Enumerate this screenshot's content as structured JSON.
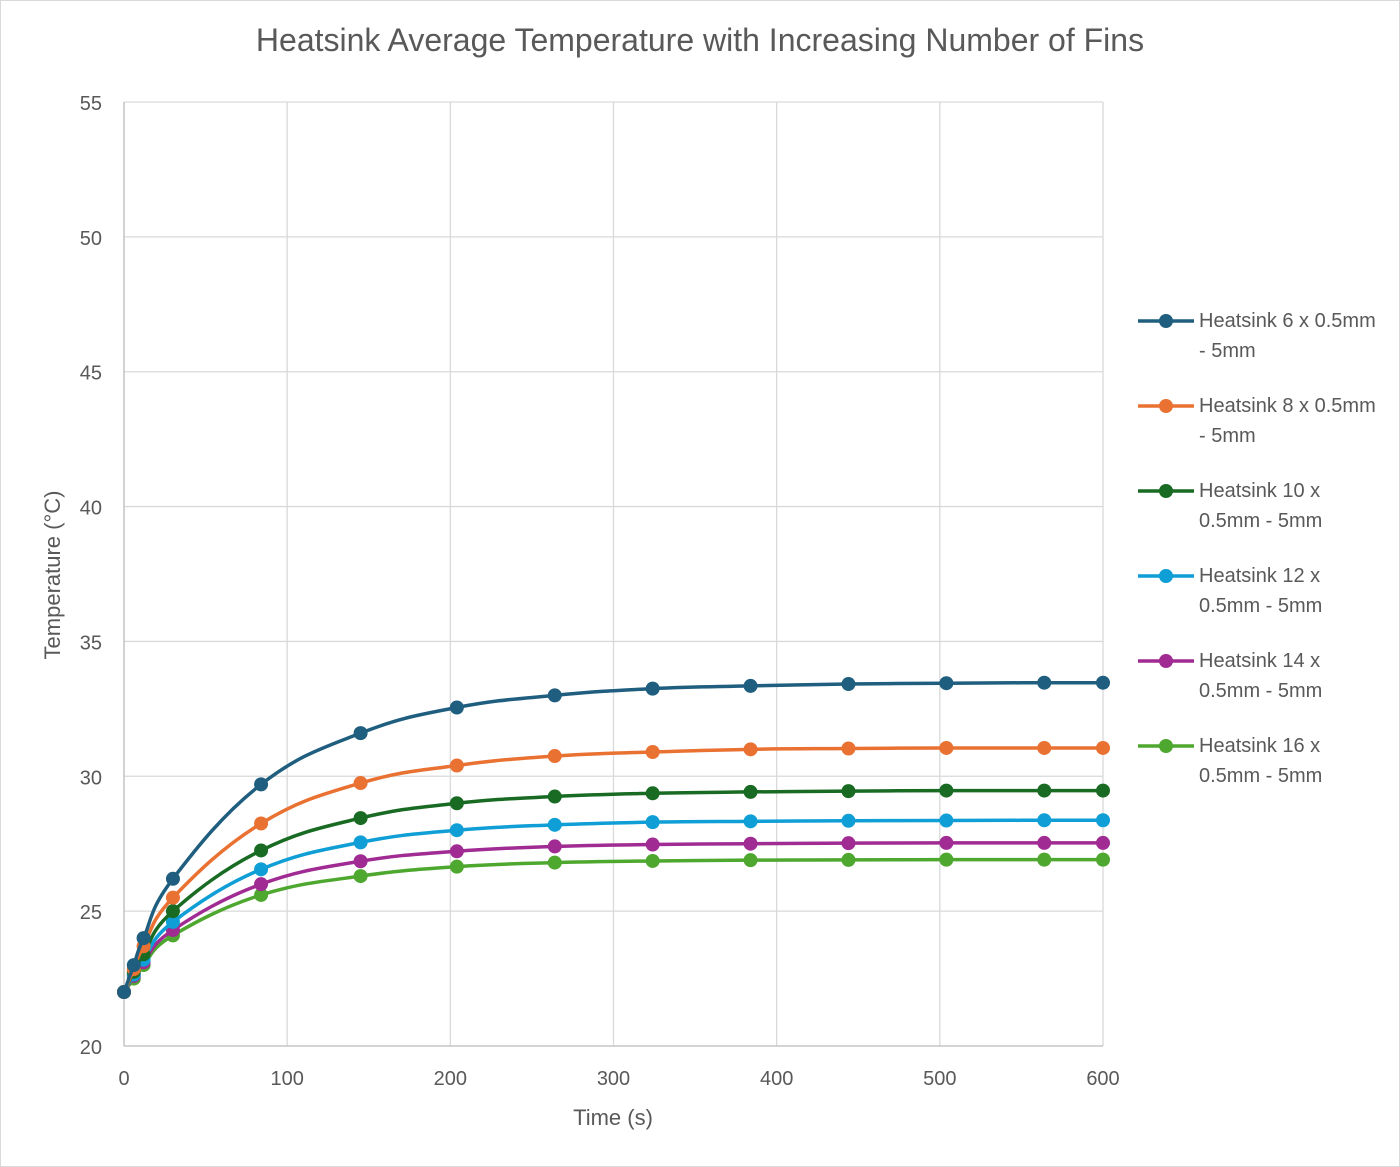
{
  "chart_data": {
    "type": "line",
    "title": "Heatsink Average Temperature with Increasing Number of Fins",
    "xlabel": "Time (s)",
    "ylabel": "Temperature (°C)",
    "xlim": [
      0,
      600
    ],
    "ylim": [
      20,
      55
    ],
    "xticks": [
      0,
      100,
      200,
      300,
      400,
      500,
      600
    ],
    "yticks": [
      20,
      25,
      30,
      35,
      40,
      45,
      50,
      55
    ],
    "grid": true,
    "legend_position": "right",
    "x": [
      0,
      6,
      12,
      30,
      84,
      145,
      204,
      264,
      324,
      384,
      444,
      504,
      564,
      600
    ],
    "series": [
      {
        "name": "Heatsink 6 x 0.5mm - 5mm",
        "color": "#1f5e7e",
        "values": [
          22.0,
          23.0,
          24.0,
          26.2,
          29.7,
          31.6,
          32.55,
          33.0,
          33.25,
          33.35,
          33.42,
          33.45,
          33.47,
          33.47
        ]
      },
      {
        "name": "Heatsink 8 x 0.5mm - 5mm",
        "color": "#e97132",
        "values": [
          22.0,
          22.85,
          23.7,
          25.5,
          28.25,
          29.75,
          30.4,
          30.75,
          30.9,
          31.0,
          31.03,
          31.05,
          31.05,
          31.05
        ]
      },
      {
        "name": "Heatsink 10 x 0.5mm - 5mm",
        "color": "#196b24",
        "values": [
          22.0,
          22.75,
          23.4,
          25.0,
          27.25,
          28.45,
          29.0,
          29.25,
          29.37,
          29.42,
          29.45,
          29.47,
          29.47,
          29.47
        ]
      },
      {
        "name": "Heatsink 12 x 0.5mm - 5mm",
        "color": "#0f9ed5",
        "values": [
          22.0,
          22.65,
          23.2,
          24.6,
          26.55,
          27.55,
          28.0,
          28.2,
          28.3,
          28.33,
          28.35,
          28.36,
          28.37,
          28.37
        ]
      },
      {
        "name": "Heatsink 14 x 0.5mm - 5mm",
        "color": "#a02b93",
        "values": [
          22.0,
          22.6,
          23.1,
          24.3,
          26.0,
          26.85,
          27.22,
          27.4,
          27.47,
          27.5,
          27.52,
          27.53,
          27.53,
          27.53
        ]
      },
      {
        "name": "Heatsink 16 x 0.5mm - 5mm",
        "color": "#4ea72e",
        "values": [
          22.0,
          22.5,
          23.0,
          24.1,
          25.6,
          26.3,
          26.65,
          26.8,
          26.86,
          26.89,
          26.9,
          26.91,
          26.91,
          26.91
        ]
      }
    ],
    "legend_lines": [
      [
        "Heatsink 6 x 0.5mm",
        "- 5mm"
      ],
      [
        "Heatsink 8 x 0.5mm",
        "- 5mm"
      ],
      [
        "Heatsink 10 x",
        "0.5mm - 5mm"
      ],
      [
        "Heatsink 12 x",
        "0.5mm - 5mm"
      ],
      [
        "Heatsink 14 x",
        "0.5mm - 5mm"
      ],
      [
        "Heatsink 16 x",
        "0.5mm - 5mm"
      ]
    ]
  }
}
